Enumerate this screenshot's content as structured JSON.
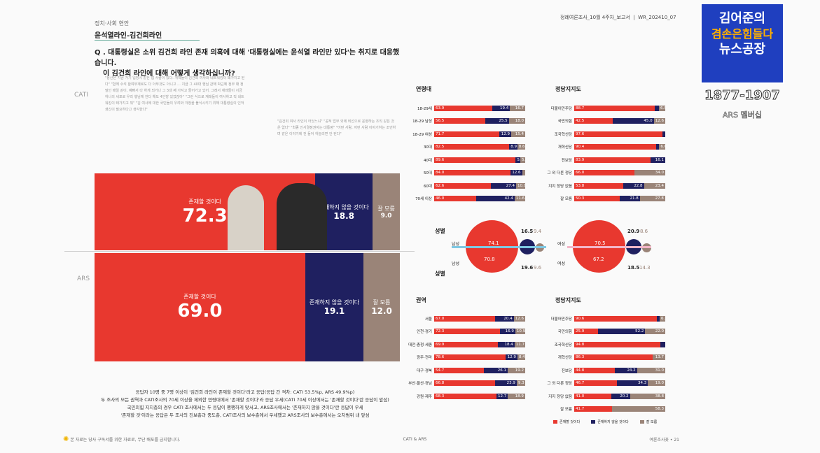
{
  "header": {
    "section": "정치·사회 현안",
    "title": "윤석열라인-김건희라인",
    "report_id": "정례여론조사_10월 4주차_보고서",
    "report_code": "WR_202410_07"
  },
  "question": {
    "line1": "Q . 대통령실은 소위 김건희 라인 존재 의혹에 대해 '대통령실에는 윤석열 라인만 있다'는 취지로 대응했습니다.",
    "line2": "이 김건희 라인에 대해 어떻게 생각하십니까?"
  },
  "quotes_left": "\"용산은 지금 거기 입장시 같은 앱 사람이 있다. 개혁들이 김건희 여사와 네트워킹이 돼가지고 된다\" \"함께 수석 참여부계로도 다 아무것도 아니고 ... 지금 그 40대 행님 관해 박근혜 정부 때 정말인 매일 같이, 예뻐서 다 하게 되거나 그 3대 째 가지고 들어가고 있어. 그래서 재래들이 지금 하나의 세포로 우리 행님께 한다 해도 4인방 있었잖아\" \"그런 식으로 재래들이 여사하고 직 네트워킹이 돼가지고 뭐\" \"김 여사에 대한 국민들의 우려와 걱정을 불식시키기 위해 대통령실의 인적 쇄신이 필요하다고 생각한다\"",
  "quotes_right": "\"김건희 여사 라인이 어딨느냐\" \"공적 업무 외에 비선으로 운영하는 조직 같은 것은 없다\" \"최종 인사결정권자는 대통령\" \"어떤 사람, 저런 사람 이야기하는 조언하며 같은 이야기에 전 들어 하늘리면 안 된다\"",
  "side_labels": {
    "cati": "CATI",
    "ars": "ARS"
  },
  "main_bars": {
    "cati": [
      {
        "label": "존재할 것이다",
        "value": "72.3",
        "pct": 72.3
      },
      {
        "label": "존재하지 않을 것이다",
        "value": "18.8",
        "pct": 18.8
      },
      {
        "label": "잘 모름",
        "value": "9.0",
        "pct": 9.0
      }
    ],
    "ars": [
      {
        "label": "존재할 것이다",
        "value": "69.0",
        "pct": 69.0
      },
      {
        "label": "존재하지 않을 것이다",
        "value": "19.1",
        "pct": 19.1
      },
      {
        "label": "잘 모름",
        "value": "12.0",
        "pct": 12.0
      }
    ]
  },
  "age": {
    "title": "연령대",
    "rows": [
      {
        "label": "18-29세",
        "v": [
          "63.9",
          "19.4",
          "16.7"
        ]
      },
      {
        "label": "18-29 남성",
        "v": [
          "56.5",
          "25.5",
          "18.0"
        ]
      },
      {
        "label": "18-29 여성",
        "v": [
          "71.7",
          "12.9",
          "15.4"
        ]
      },
      {
        "label": "30대",
        "v": [
          "82.5",
          "8.9",
          "8.6"
        ]
      },
      {
        "label": "40대",
        "v": [
          "89.6",
          "5.0",
          "5.3"
        ]
      },
      {
        "label": "50대",
        "v": [
          "84.0",
          "12.6",
          ""
        ]
      },
      {
        "label": "60대",
        "v": [
          "62.6",
          "27.4",
          "10.0"
        ]
      },
      {
        "label": "70세 이상",
        "v": [
          "46.0",
          "42.4",
          "11.6"
        ]
      }
    ]
  },
  "party1": {
    "title": "정당지지도",
    "rows": [
      {
        "label": "더불어민주당",
        "v": [
          "88.7",
          "",
          "6.9"
        ]
      },
      {
        "label": "국민의힘",
        "v": [
          "42.5",
          "45.0",
          "12.6"
        ]
      },
      {
        "label": "조국혁신당",
        "v": [
          "97.6",
          "",
          ""
        ]
      },
      {
        "label": "개혁신당",
        "v": [
          "90.4",
          "",
          "6.6"
        ]
      },
      {
        "label": "진보당",
        "v": [
          "83.9",
          "16.1",
          ""
        ]
      },
      {
        "label": "그 외 다른 정당",
        "v": [
          "66.0",
          "",
          "34.0"
        ]
      },
      {
        "label": "지지 정당 없음",
        "v": [
          "53.8",
          "22.8",
          "23.4"
        ]
      },
      {
        "label": "잘 모름",
        "v": [
          "50.3",
          "21.8",
          "27.8"
        ]
      }
    ]
  },
  "gender": {
    "title_top": "성별",
    "title_bottom": "성별",
    "male_label": "남성",
    "female_label": "여성",
    "male_cati": [
      "74.1",
      "16.5",
      "9.4"
    ],
    "male_ars": [
      "70.8",
      "19.6",
      "9.6"
    ],
    "female_cati": [
      "70.5",
      "20.9",
      "8.6"
    ],
    "female_ars": [
      "67.2",
      "18.5",
      "14.3"
    ]
  },
  "region": {
    "title": "권역",
    "rows": [
      {
        "label": "서울",
        "v": [
          "67.0",
          "20.4",
          "12.6"
        ]
      },
      {
        "label": "인천·경기",
        "v": [
          "72.3",
          "16.9",
          "10.9"
        ]
      },
      {
        "label": "대전·충청·세종",
        "v": [
          "69.9",
          "18.4",
          "11.7"
        ]
      },
      {
        "label": "광주·전라",
        "v": [
          "78.6",
          "12.9",
          "8.4"
        ]
      },
      {
        "label": "대구·경북",
        "v": [
          "54.7",
          "26.1",
          "19.2"
        ]
      },
      {
        "label": "부산·울산·경남",
        "v": [
          "66.8",
          "23.9",
          "9.3"
        ]
      },
      {
        "label": "강원·제주",
        "v": [
          "68.3",
          "12.7",
          "18.9"
        ]
      }
    ]
  },
  "party2": {
    "title": "정당지지도",
    "rows": [
      {
        "label": "더불어민주당",
        "v": [
          "90.6",
          "",
          "6.1"
        ]
      },
      {
        "label": "국민의힘",
        "v": [
          "25.9",
          "52.2",
          "22.0"
        ]
      },
      {
        "label": "조국혁신당",
        "v": [
          "94.8",
          "",
          ""
        ]
      },
      {
        "label": "개혁신당",
        "v": [
          "86.3",
          "",
          "13.7"
        ]
      },
      {
        "label": "진보당",
        "v": [
          "44.8",
          "24.2",
          "31.0"
        ]
      },
      {
        "label": "그 외 다른 정당",
        "v": [
          "46.7",
          "34.3",
          "19.0"
        ]
      },
      {
        "label": "지지 정당 없음",
        "v": [
          "41.0",
          "20.2",
          "38.8"
        ]
      },
      {
        "label": "잘 모름",
        "v": [
          "41.7",
          "",
          "58.3"
        ]
      }
    ]
  },
  "legend": [
    "존재할 것이다",
    "존재하지 않을 것이다",
    "잘 모름"
  ],
  "summary": [
    "응답자 10명 중 7명 이상이 '김건희 라인이 존재할 것이다'라고 응답(응답 간 격차: CATI 53.5%p, ARS 49.9%p)",
    "두 조사의 모든 권역과 CATI조사의 70세 이상을 제외한 연령대에서 '존재할 것이다'라 응답 우세(CATI 70세 이상에서는 '존재할 것이다'란 응답이 앞섬)",
    "국민의힘 지지층의 경우 CATI 조사에서는 두 응답이 팽팽하게 맞서고, ARS조사에서는 '존재하지 않을 것이다'란 응답이 우세",
    "'존재할 것'이라는 응답은 두 조사의 진보층과 중도층, CATI조사의 보수층에서 우세했고 ARS조사의 보수층에서는 오차범위 내 앞섬"
  ],
  "footer": {
    "left": "본 자료는 당사 구독서를 위한 자료로, 무단 배포를 금지합니다.",
    "center": "CATI & ARS",
    "right": "여론조사꽃 • 21"
  },
  "logo": {
    "line1": "김어준의",
    "line2": "겸손은힘들다",
    "line3": "뉴스공장",
    "years": "1877-1907",
    "member": "ARS 멤버십"
  },
  "colors": {
    "red": "#e8382f",
    "navy": "#1f2060",
    "tan": "#9a8478",
    "brand": "#1f3fbf"
  }
}
